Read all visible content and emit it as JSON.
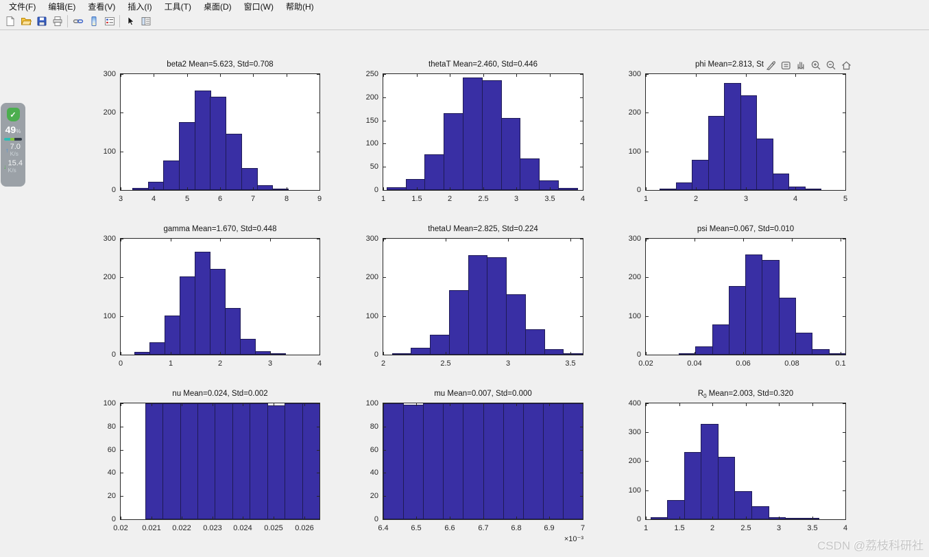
{
  "menu": {
    "items": [
      "文件(F)",
      "编辑(E)",
      "查看(V)",
      "插入(I)",
      "工具(T)",
      "桌面(D)",
      "窗口(W)",
      "帮助(H)"
    ]
  },
  "toolbar": {
    "icons": [
      "new-figure",
      "open-file",
      "save-figure",
      "print-figure",
      "link-plot",
      "insert-colorbar",
      "insert-legend",
      "edit-plot",
      "property-inspector"
    ]
  },
  "axes_toolbar": {
    "icons": [
      "brush",
      "datatip",
      "pan",
      "zoom-in",
      "zoom-out",
      "restore-view-home"
    ]
  },
  "monitor_widget": {
    "status_icon": "shield-check",
    "check_glyph": "✓",
    "percent": "49",
    "percent_unit": "%",
    "upload_arrow": "↑",
    "upload_value": "7.0",
    "upload_unit": "K/s",
    "download_arrow": "↓",
    "download_value": "15.4",
    "download_unit": "K/s"
  },
  "watermark": {
    "text": "CSDN @荔枝科研社"
  },
  "colors": {
    "bar_fill": "#392fa4",
    "bar_edge": "#1e1a55",
    "axis": "#262626",
    "background": "#f0f0f0"
  },
  "chart_data": [
    {
      "type": "bar",
      "kind": "histogram",
      "title": "beta2 Mean=5.623, Std=0.708",
      "xlim": [
        3,
        9
      ],
      "ylim": [
        0,
        300
      ],
      "xtick_vals": [
        3,
        4,
        5,
        6,
        7,
        8,
        9
      ],
      "xtick_labels": [
        "3",
        "4",
        "5",
        "6",
        "7",
        "8",
        "9"
      ],
      "ytick_vals": [
        0,
        100,
        200,
        300
      ],
      "ytick_labels": [
        "0",
        "100",
        "200",
        "300"
      ],
      "bin_start": 3.35,
      "bin_width": 0.47,
      "values": [
        5,
        22,
        77,
        175,
        257,
        242,
        145,
        57,
        13,
        3
      ]
    },
    {
      "type": "bar",
      "kind": "histogram",
      "title": "thetaT Mean=2.460, Std=0.446",
      "xlim": [
        1,
        4
      ],
      "ylim": [
        0,
        250
      ],
      "xtick_vals": [
        1,
        1.5,
        2,
        2.5,
        3,
        3.5,
        4
      ],
      "xtick_labels": [
        "1",
        "1.5",
        "2",
        "2.5",
        "3",
        "3.5",
        "4"
      ],
      "ytick_vals": [
        0,
        50,
        100,
        150,
        200,
        250
      ],
      "ytick_labels": [
        "0",
        "50",
        "100",
        "150",
        "200",
        "250"
      ],
      "bin_start": 1.05,
      "bin_width": 0.2866,
      "values": [
        6,
        24,
        77,
        165,
        242,
        236,
        156,
        68,
        21,
        5
      ]
    },
    {
      "type": "bar",
      "kind": "histogram",
      "title": "phi Mean=2.813, St",
      "title_truncated": true,
      "xlim": [
        1,
        5
      ],
      "ylim": [
        0,
        300
      ],
      "xtick_vals": [
        1,
        2,
        3,
        4,
        5
      ],
      "xtick_labels": [
        "1",
        "2",
        "3",
        "4",
        "5"
      ],
      "ytick_vals": [
        0,
        100,
        200,
        300
      ],
      "ytick_labels": [
        "0",
        "100",
        "200",
        "300"
      ],
      "bin_start": 1.28,
      "bin_width": 0.323,
      "values": [
        3,
        20,
        78,
        192,
        277,
        245,
        133,
        43,
        8,
        1
      ]
    },
    {
      "type": "bar",
      "kind": "histogram",
      "title": "gamma Mean=1.670, Std=0.448",
      "xlim": [
        0,
        4
      ],
      "ylim": [
        0,
        300
      ],
      "xtick_vals": [
        0,
        1,
        2,
        3,
        4
      ],
      "xtick_labels": [
        "0",
        "1",
        "2",
        "3",
        "4"
      ],
      "ytick_vals": [
        0,
        100,
        200,
        300
      ],
      "ytick_labels": [
        "0",
        "100",
        "200",
        "300"
      ],
      "bin_start": 0.28,
      "bin_width": 0.303,
      "values": [
        7,
        32,
        101,
        203,
        267,
        222,
        120,
        40,
        9,
        2
      ]
    },
    {
      "type": "bar",
      "kind": "histogram",
      "title": "thetaU Mean=2.825, Std=0.224",
      "xlim": [
        2,
        3.6
      ],
      "ylim": [
        0,
        300
      ],
      "xtick_vals": [
        2,
        2.5,
        3,
        3.5
      ],
      "xtick_labels": [
        "2",
        "2.5",
        "3",
        "3.5"
      ],
      "ytick_vals": [
        0,
        100,
        200,
        300
      ],
      "ytick_labels": [
        "0",
        "100",
        "200",
        "300"
      ],
      "bin_start": 2.07,
      "bin_width": 0.1525,
      "values": [
        3,
        18,
        52,
        167,
        257,
        252,
        157,
        65,
        15,
        3
      ]
    },
    {
      "type": "bar",
      "kind": "histogram",
      "title": "psi Mean=0.067, Std=0.010",
      "xlim": [
        0.02,
        0.102
      ],
      "ylim": [
        0,
        300
      ],
      "xtick_vals": [
        0.02,
        0.04,
        0.06,
        0.08,
        0.1
      ],
      "xtick_labels": [
        "0.02",
        "0.04",
        "0.06",
        "0.08",
        "0.1"
      ],
      "ytick_vals": [
        0,
        100,
        200,
        300
      ],
      "ytick_labels": [
        "0",
        "100",
        "200",
        "300"
      ],
      "bin_start": 0.0335,
      "bin_width": 0.00685,
      "values": [
        4,
        21,
        78,
        178,
        260,
        245,
        148,
        57,
        14,
        2
      ]
    },
    {
      "type": "bar",
      "kind": "histogram",
      "title": "nu Mean=0.024, Std=0.002",
      "xlim": [
        0.02,
        0.0265
      ],
      "ylim": [
        0,
        100
      ],
      "xtick_vals": [
        0.02,
        0.021,
        0.022,
        0.023,
        0.024,
        0.025,
        0.026
      ],
      "xtick_labels": [
        "0.02",
        "0.021",
        "0.022",
        "0.023",
        "0.024",
        "0.025",
        "0.026"
      ],
      "ytick_vals": [
        0,
        20,
        40,
        60,
        80,
        100
      ],
      "ytick_labels": [
        "0",
        "20",
        "40",
        "60",
        "80",
        "100"
      ],
      "bin_start": 0.0208,
      "bin_width": 0.00057,
      "values": [
        100,
        100,
        100,
        100,
        100,
        100,
        100,
        98,
        100,
        100
      ]
    },
    {
      "type": "bar",
      "kind": "histogram",
      "title": "mu Mean=0.007, Std=0.000",
      "xlim": [
        0.0064,
        0.007
      ],
      "ylim": [
        0,
        100
      ],
      "xtick_vals": [
        0.0064,
        0.0065,
        0.0066,
        0.0067,
        0.0068,
        0.0069,
        0.007
      ],
      "xtick_labels": [
        "6.4",
        "6.5",
        "6.6",
        "6.7",
        "6.8",
        "6.9",
        "7"
      ],
      "ytick_vals": [
        0,
        20,
        40,
        60,
        80,
        100
      ],
      "ytick_labels": [
        "0",
        "20",
        "40",
        "60",
        "80",
        "100"
      ],
      "exponent_label": "×10⁻³",
      "bin_start": 0.0064,
      "bin_width": 6e-05,
      "values": [
        100,
        99,
        100,
        100,
        100,
        100,
        100,
        100,
        100,
        100
      ]
    },
    {
      "type": "bar",
      "kind": "histogram",
      "title": {
        "pre": "R",
        "sub": "0",
        "post": " Mean=2.003, Std=0.320"
      },
      "xlim": [
        1,
        4
      ],
      "ylim": [
        0,
        400
      ],
      "xtick_vals": [
        1,
        1.5,
        2,
        2.5,
        3,
        3.5,
        4
      ],
      "xtick_labels": [
        "1",
        "1.5",
        "2",
        "2.5",
        "3",
        "3.5",
        "4"
      ],
      "ytick_vals": [
        0,
        100,
        200,
        300,
        400
      ],
      "ytick_labels": [
        "0",
        "100",
        "200",
        "300",
        "400"
      ],
      "bin_start": 1.07,
      "bin_width": 0.253,
      "values": [
        8,
        66,
        232,
        328,
        216,
        98,
        44,
        7,
        1,
        2
      ]
    }
  ]
}
